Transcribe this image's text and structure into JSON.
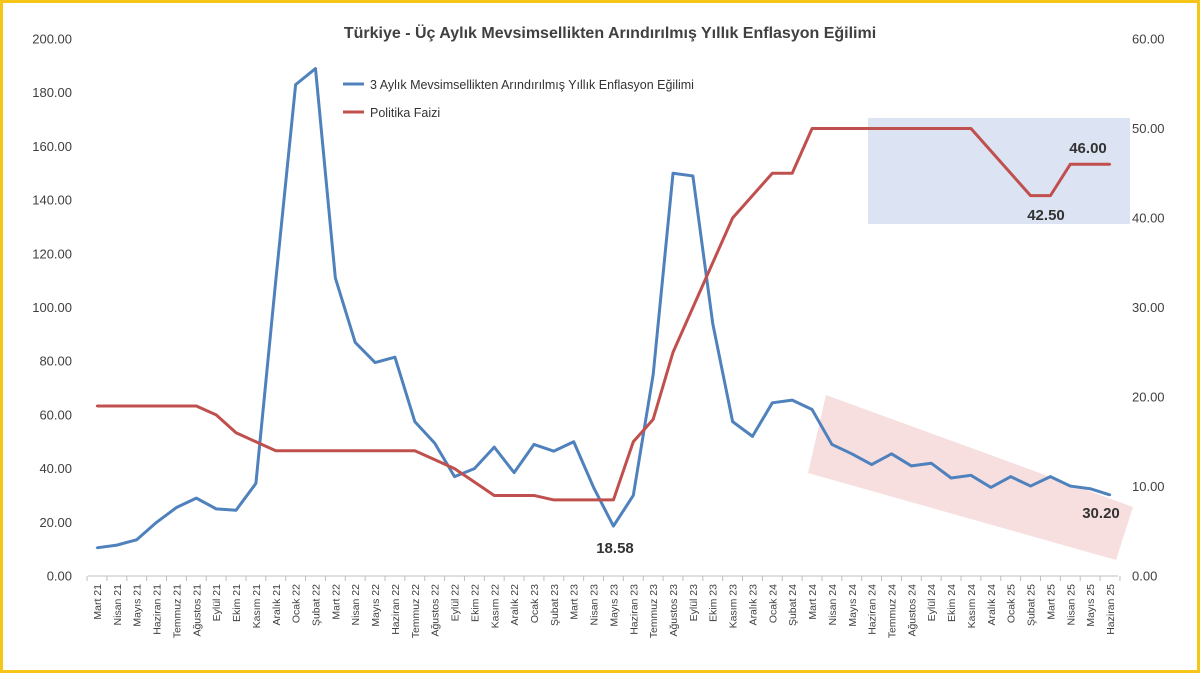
{
  "chart_data": {
    "type": "line",
    "title": "Türkiye - Üç Aylık Mevsimsellikten Arındırılmış Yıllık Enflasyon Eğilimi",
    "categories": [
      "Mart 21",
      "Nisan 21",
      "Mayıs 21",
      "Haziran 21",
      "Temmuz 21",
      "Ağustos 21",
      "Eylül 21",
      "Ekim 21",
      "Kasım 21",
      "Aralık 21",
      "Ocak 22",
      "Şubat 22",
      "Mart 22",
      "Nisan 22",
      "Mayıs 22",
      "Haziran 22",
      "Temmuz 22",
      "Ağustos 22",
      "Eylül 22",
      "Ekim 22",
      "Kasım 22",
      "Aralık 22",
      "Ocak 23",
      "Şubat 23",
      "Mart 23",
      "Nisan 23",
      "Mayıs 23",
      "Haziran 23",
      "Temmuz 23",
      "Ağustos 23",
      "Eylül 23",
      "Ekim 23",
      "Kasım 23",
      "Aralık 23",
      "Ocak 24",
      "Şubat 24",
      "Mart 24",
      "Nisan 24",
      "Mayıs 24",
      "Haziran 24",
      "Temmuz 24",
      "Ağustos 24",
      "Eylül 24",
      "Ekim 24",
      "Kasım 24",
      "Aralık 24",
      "Ocak 25",
      "Şubat 25",
      "Mart 25",
      "Nisan 25",
      "Mayıs 25",
      "Haziran 25"
    ],
    "series": [
      {
        "name": "3 Aylık Mevsimsellikten Arındırılmış Yıllık Enflasyon Eğilimi",
        "axis": "left",
        "color": "#4f81bd",
        "values": [
          10.5,
          11.5,
          13.5,
          20,
          25.5,
          29,
          25,
          24.5,
          34.5,
          110,
          183,
          189,
          111,
          87,
          79.5,
          81.5,
          57.5,
          49.5,
          37,
          40,
          48,
          38.5,
          49,
          46.5,
          50,
          33,
          18.58,
          30,
          75,
          150,
          149,
          94,
          57.5,
          52,
          64.5,
          65.5,
          62,
          49,
          45.5,
          41.5,
          45.5,
          41,
          42,
          36.5,
          37.5,
          33,
          37,
          33.5,
          37,
          33.5,
          32.5,
          30.2
        ]
      },
      {
        "name": "Politika Faizi",
        "axis": "right",
        "color": "#c0504d",
        "values": [
          19,
          19,
          19,
          19,
          19,
          19,
          18,
          16,
          15,
          14,
          14,
          14,
          14,
          14,
          14,
          14,
          14,
          13,
          12,
          10.5,
          9,
          9,
          9,
          8.5,
          8.5,
          8.5,
          8.5,
          15,
          17.5,
          25,
          30,
          35,
          40,
          42.5,
          45,
          45,
          50,
          50,
          50,
          50,
          50,
          50,
          50,
          50,
          50,
          47.5,
          45,
          42.5,
          42.5,
          46,
          46,
          46
        ]
      }
    ],
    "y_left": {
      "min": 0,
      "max": 200,
      "ticks": [
        "0.00",
        "20.00",
        "40.00",
        "60.00",
        "80.00",
        "100.00",
        "120.00",
        "140.00",
        "160.00",
        "180.00",
        "200.00"
      ]
    },
    "y_right": {
      "min": 0,
      "max": 60,
      "ticks": [
        "0.00",
        "10.00",
        "20.00",
        "30.00",
        "40.00",
        "50.00",
        "60.00"
      ]
    },
    "legend": [
      "3 Aylık Mevsimsellikten Arındırılmış Yıllık Enflasyon Eğilimi",
      "Politika Faizi"
    ],
    "legend_position": "top-left",
    "annotations": [
      {
        "text": "18.58",
        "series": 0,
        "index": 26
      },
      {
        "text": "30.20",
        "series": 0,
        "index": 51
      },
      {
        "text": "42.50",
        "series": 1,
        "index": 47
      },
      {
        "text": "46.00",
        "series": 1,
        "index": 49
      }
    ],
    "highlight_colors": {
      "blue_box": "#dce3f2",
      "red_band": "#f7dfe0"
    },
    "border_color": "#f5c518"
  }
}
